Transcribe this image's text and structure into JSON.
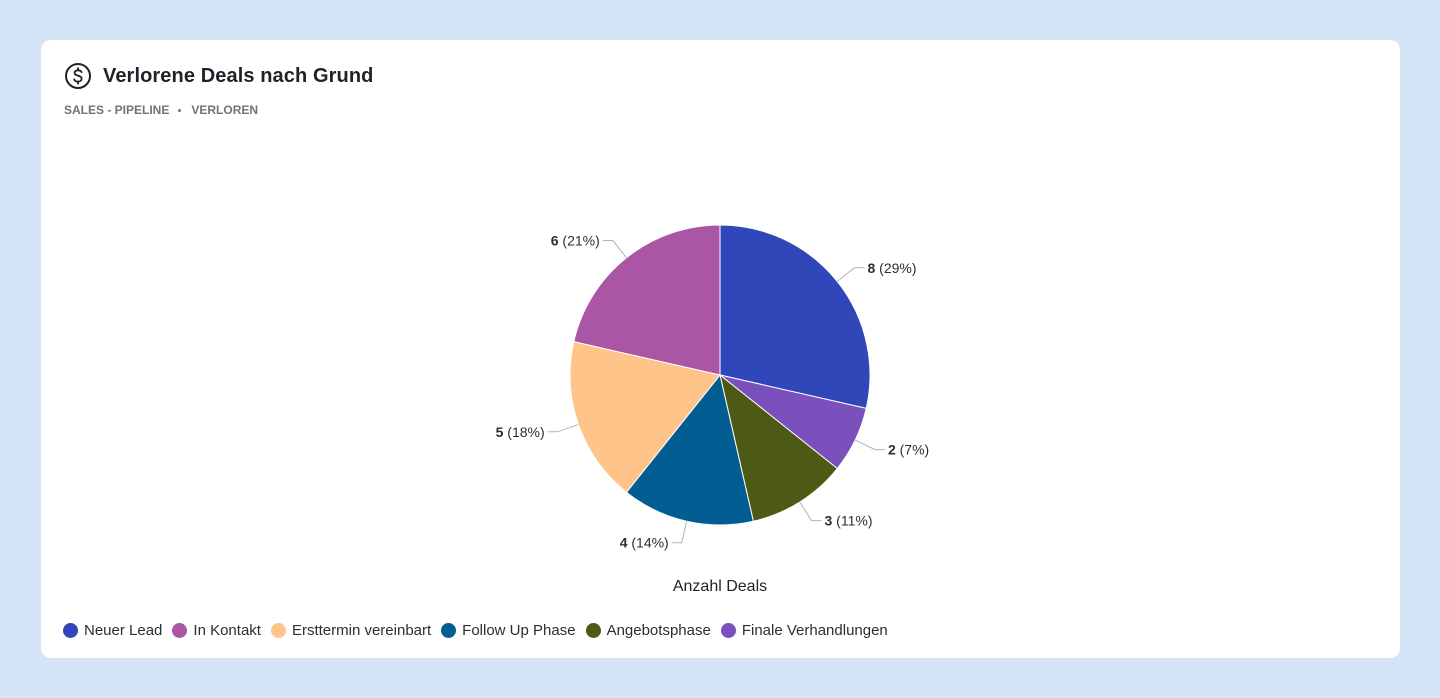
{
  "header": {
    "icon": "dollar-circle-icon",
    "title": "Verlorene Deals nach Grund",
    "breadcrumb": [
      "SALES - PIPELINE",
      "VERLOREN"
    ]
  },
  "chart_data": {
    "type": "pie",
    "title": "Verlorene Deals nach Grund",
    "series_label": "Anzahl Deals",
    "slices": [
      {
        "name": "Neuer Lead",
        "value": 8,
        "percent": "29%",
        "color": "#2f47b9"
      },
      {
        "name": "Finale Verhandlungen",
        "value": 2,
        "percent": "7%",
        "color": "#7a50bd"
      },
      {
        "name": "Angebotsphase",
        "value": 3,
        "percent": "11%",
        "color": "#4d5a15"
      },
      {
        "name": "Follow Up Phase",
        "value": 4,
        "percent": "14%",
        "color": "#025d93"
      },
      {
        "name": "Ersttermin vereinbart",
        "value": 5,
        "percent": "18%",
        "color": "#ffc48a"
      },
      {
        "name": "In Kontakt",
        "value": 6,
        "percent": "21%",
        "color": "#ab56a5"
      }
    ],
    "legend_order": [
      "Neuer Lead",
      "In Kontakt",
      "Ersttermin vereinbart",
      "Follow Up Phase",
      "Angebotsphase",
      "Finale Verhandlungen"
    ],
    "legend_position": "bottom-left"
  }
}
